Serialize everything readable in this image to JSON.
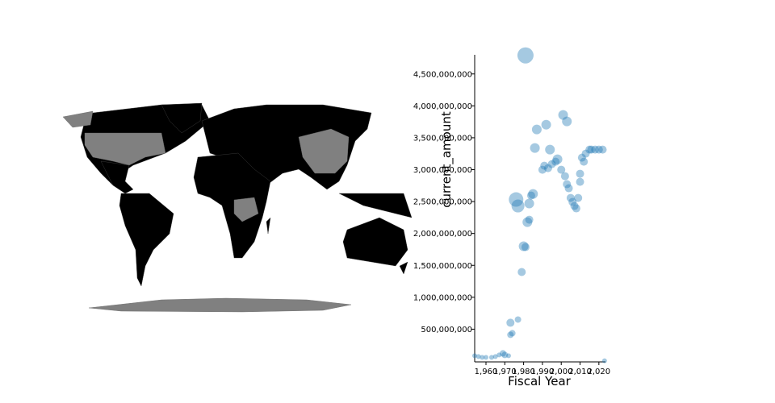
{
  "chart_data": [
    {
      "type": "map"
    },
    {
      "type": "scatter",
      "x_label": "Fiscal Year",
      "y_label": "current_amount",
      "color": "#1f77b4",
      "x": [
        1954,
        1956,
        1958,
        1960,
        1963,
        1965,
        1967,
        1969,
        1970,
        1972,
        1973,
        1974,
        1973,
        1977,
        1979,
        1980,
        1981,
        1982,
        1983,
        1983,
        1984,
        1977,
        1976,
        1985,
        1986,
        1987,
        1992,
        1994,
        1990,
        1991,
        1993,
        1995,
        1997,
        1998,
        2000,
        2002,
        2003,
        2004,
        2005,
        2006,
        2007,
        2008,
        2001,
        2003,
        2011,
        2012,
        2013,
        2015,
        2016,
        2018,
        2020,
        2022,
        2010,
        2010,
        2009,
        2023,
        1981
      ],
      "values": [
        84000000,
        71000000,
        58000000,
        58000000,
        58000000,
        71000000,
        96000000,
        121000000,
        96000000,
        84000000,
        412000000,
        437000000,
        601000000,
        651000000,
        1396000000,
        1800000000,
        1787000000,
        2178000000,
        2216000000,
        2469000000,
        2595000000,
        2431000000,
        2532000000,
        2620000000,
        3340000000,
        3630000000,
        3705000000,
        3314000000,
        2999000000,
        3062000000,
        3024000000,
        3087000000,
        3125000000,
        3163000000,
        2999000000,
        2898000000,
        2772000000,
        2709000000,
        2557000000,
        2494000000,
        2431000000,
        2393000000,
        3857000000,
        3756000000,
        3188000000,
        3125000000,
        3251000000,
        3314000000,
        3314000000,
        3314000000,
        3314000000,
        3314000000,
        2809000000,
        2936000000,
        2557000000,
        5000000,
        4791000000
      ],
      "sizes": [
        3,
        3,
        3,
        3,
        3,
        3,
        3,
        4,
        4,
        3,
        4,
        4,
        5,
        4,
        5,
        6,
        5,
        6,
        5,
        6,
        5,
        8,
        9,
        6,
        6,
        6,
        6,
        6,
        5,
        5,
        5,
        5,
        5,
        6,
        5,
        5,
        5,
        5,
        5,
        5,
        5,
        5,
        6,
        6,
        5,
        5,
        5,
        5,
        5,
        5,
        5,
        5,
        5,
        5,
        5,
        3,
        10
      ],
      "xlim": [
        1954,
        2023.5
      ],
      "ylim": [
        0,
        4800000000
      ],
      "xticks": [
        {
          "value": 1960,
          "label": "1,960"
        },
        {
          "value": 1970,
          "label": "1,970"
        },
        {
          "value": 1980,
          "label": "1,980"
        },
        {
          "value": 1990,
          "label": "1,990"
        },
        {
          "value": 2000,
          "label": "2,000"
        },
        {
          "value": 2010,
          "label": "2,010"
        },
        {
          "value": 2020,
          "label": "2,020"
        }
      ],
      "yticks": [
        {
          "value": 500000000,
          "label": "500,000,000"
        },
        {
          "value": 1000000000,
          "label": "1,000,000,000"
        },
        {
          "value": 1500000000,
          "label": "1,500,000,000"
        },
        {
          "value": 2000000000,
          "label": "2,000,000,000"
        },
        {
          "value": 2500000000,
          "label": "2,500,000,000"
        },
        {
          "value": 3000000000,
          "label": "3,000,000,000"
        },
        {
          "value": 3500000000,
          "label": "3,500,000,000"
        },
        {
          "value": 4000000000,
          "label": "4,000,000,000"
        },
        {
          "value": 4500000000,
          "label": "4,500,000,000"
        }
      ]
    }
  ]
}
